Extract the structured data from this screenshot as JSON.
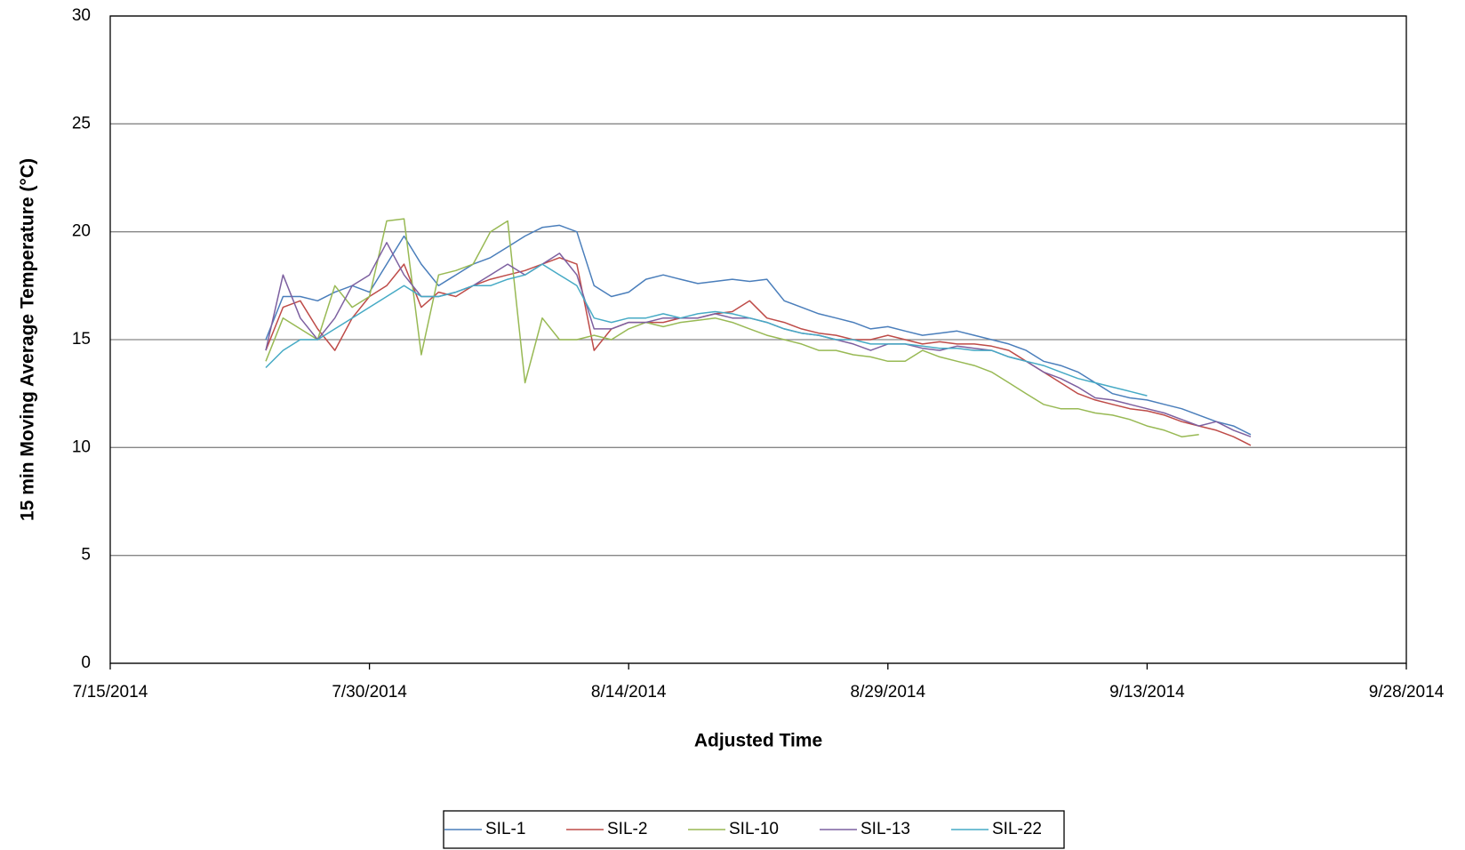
{
  "chart_data": {
    "type": "line",
    "x_label": "Adjusted Time",
    "y_label": "15 min  Moving  Average Temperature (°C)",
    "xlim": [
      "7/15/2014",
      "9/28/2014"
    ],
    "xticks": [
      "7/15/2014",
      "7/30/2014",
      "8/14/2014",
      "8/29/2014",
      "9/13/2014",
      "9/28/2014"
    ],
    "ylim": [
      0,
      30
    ],
    "yticks": [
      0,
      5,
      10,
      15,
      20,
      25,
      30
    ],
    "grid": true,
    "legend": "bottom",
    "x": [
      "7/24/2014",
      "7/25/2014",
      "7/26/2014",
      "7/27/2014",
      "7/28/2014",
      "7/29/2014",
      "7/30/2014",
      "7/31/2014",
      "8/1/2014",
      "8/2/2014",
      "8/3/2014",
      "8/4/2014",
      "8/5/2014",
      "8/6/2014",
      "8/7/2014",
      "8/8/2014",
      "8/9/2014",
      "8/10/2014",
      "8/11/2014",
      "8/12/2014",
      "8/13/2014",
      "8/14/2014",
      "8/15/2014",
      "8/16/2014",
      "8/17/2014",
      "8/18/2014",
      "8/19/2014",
      "8/20/2014",
      "8/21/2014",
      "8/22/2014",
      "8/23/2014",
      "8/24/2014",
      "8/25/2014",
      "8/26/2014",
      "8/27/2014",
      "8/28/2014",
      "8/29/2014",
      "8/30/2014",
      "8/31/2014",
      "9/1/2014",
      "9/2/2014",
      "9/3/2014",
      "9/4/2014",
      "9/5/2014",
      "9/6/2014",
      "9/7/2014",
      "9/8/2014",
      "9/9/2014",
      "9/10/2014",
      "9/11/2014",
      "9/12/2014",
      "9/13/2014",
      "9/14/2014",
      "9/15/2014",
      "9/16/2014",
      "9/17/2014",
      "9/18/2014",
      "9/19/2014"
    ],
    "series": [
      {
        "name": "SIL-1",
        "color": "#4a7ebb",
        "values": [
          15.0,
          17.0,
          17.0,
          16.8,
          17.2,
          17.5,
          17.2,
          18.5,
          19.8,
          18.5,
          17.5,
          18.0,
          18.5,
          18.8,
          19.3,
          19.8,
          20.2,
          20.3,
          20.0,
          17.5,
          17.0,
          17.2,
          17.8,
          18.0,
          17.8,
          17.6,
          17.7,
          17.8,
          17.7,
          17.8,
          16.8,
          16.5,
          16.2,
          16.0,
          15.8,
          15.5,
          15.6,
          15.4,
          15.2,
          15.3,
          15.4,
          15.2,
          15.0,
          14.8,
          14.5,
          14.0,
          13.8,
          13.5,
          13.0,
          12.5,
          12.3,
          12.2,
          12.0,
          11.8,
          11.5,
          11.2,
          11.0,
          10.6
        ]
      },
      {
        "name": "SIL-2",
        "color": "#be4b48",
        "values": [
          14.5,
          16.5,
          16.8,
          15.5,
          14.5,
          16.0,
          17.0,
          17.5,
          18.5,
          16.5,
          17.2,
          17.0,
          17.5,
          17.8,
          18.0,
          18.2,
          18.5,
          18.8,
          18.5,
          14.5,
          15.5,
          15.8,
          15.8,
          15.8,
          16.0,
          16.0,
          16.2,
          16.3,
          16.8,
          16.0,
          15.8,
          15.5,
          15.3,
          15.2,
          15.0,
          15.0,
          15.2,
          15.0,
          14.8,
          14.9,
          14.8,
          14.8,
          14.7,
          14.5,
          14.0,
          13.5,
          13.0,
          12.5,
          12.2,
          12.0,
          11.8,
          11.7,
          11.5,
          11.2,
          11.0,
          10.8,
          10.5,
          10.1
        ]
      },
      {
        "name": "SIL-10",
        "color": "#98b954",
        "values": [
          14.0,
          16.0,
          15.5,
          15.0,
          17.5,
          16.5,
          17.0,
          20.5,
          20.6,
          14.3,
          18.0,
          18.2,
          18.5,
          20.0,
          20.5,
          13.0,
          16.0,
          15.0,
          15.0,
          15.2,
          15.0,
          15.5,
          15.8,
          15.6,
          15.8,
          15.9,
          16.0,
          15.8,
          15.5,
          15.2,
          15.0,
          14.8,
          14.5,
          14.5,
          14.3,
          14.2,
          14.0,
          14.0,
          14.5,
          14.2,
          14.0,
          13.8,
          13.5,
          13.0,
          12.5,
          12.0,
          11.8,
          11.8,
          11.6,
          11.5,
          11.3,
          11.0,
          10.8,
          10.5,
          10.6,
          null,
          null,
          null
        ]
      },
      {
        "name": "SIL-13",
        "color": "#7d60a0",
        "values": [
          14.5,
          18.0,
          16.0,
          15.0,
          16.0,
          17.5,
          18.0,
          19.5,
          18.0,
          17.0,
          17.0,
          17.2,
          17.5,
          18.0,
          18.5,
          18.0,
          18.5,
          19.0,
          18.0,
          15.5,
          15.5,
          15.8,
          15.8,
          16.0,
          16.0,
          16.0,
          16.2,
          16.0,
          16.0,
          15.8,
          15.5,
          15.3,
          15.2,
          15.0,
          14.8,
          14.5,
          14.8,
          14.8,
          14.6,
          14.5,
          14.7,
          14.6,
          14.5,
          14.2,
          14.0,
          13.5,
          13.2,
          12.8,
          12.3,
          12.2,
          12.0,
          11.8,
          11.6,
          11.3,
          11.0,
          11.2,
          10.8,
          10.5
        ]
      },
      {
        "name": "SIL-22",
        "color": "#46aac5",
        "values": [
          13.7,
          14.5,
          15.0,
          15.0,
          15.5,
          16.0,
          16.5,
          17.0,
          17.5,
          17.0,
          17.0,
          17.2,
          17.5,
          17.5,
          17.8,
          18.0,
          18.5,
          18.0,
          17.5,
          16.0,
          15.8,
          16.0,
          16.0,
          16.2,
          16.0,
          16.2,
          16.3,
          16.2,
          16.0,
          15.8,
          15.5,
          15.3,
          15.2,
          15.0,
          15.0,
          14.8,
          14.8,
          14.8,
          14.7,
          14.6,
          14.6,
          14.5,
          14.5,
          14.2,
          14.0,
          13.8,
          13.5,
          13.2,
          13.0,
          12.8,
          12.6,
          12.4,
          null,
          null,
          null,
          null,
          null,
          null
        ]
      }
    ]
  }
}
